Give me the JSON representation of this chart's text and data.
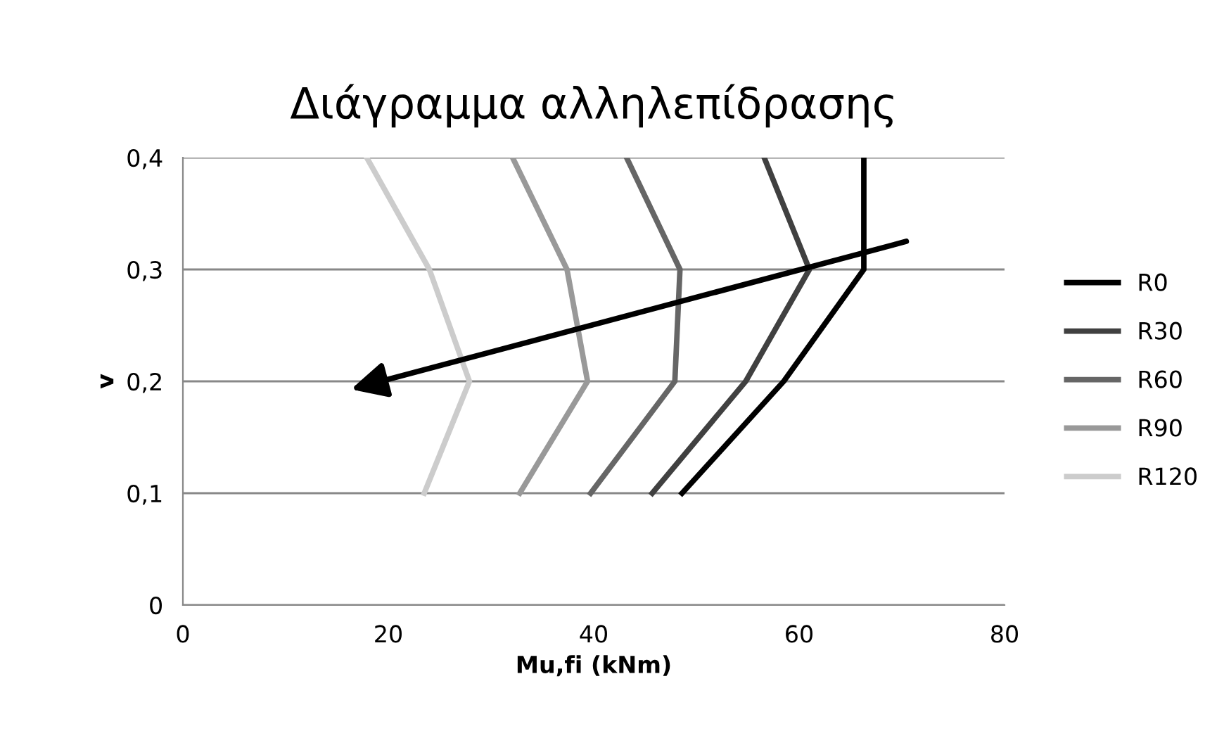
{
  "chart_data": {
    "type": "line",
    "title": "Διάγραμμα αλληλεπίδρασης",
    "xlabel": "Mu,fi (kNm)",
    "ylabel": "v",
    "xlim": [
      0,
      80
    ],
    "xticks": [
      0,
      20,
      40,
      60,
      80
    ],
    "ylim": [
      0,
      0.4
    ],
    "yticks": [
      {
        "value": 0,
        "label": "0"
      },
      {
        "value": 0.1,
        "label": "0,1"
      },
      {
        "value": 0.2,
        "label": "0,2"
      },
      {
        "value": 0.3,
        "label": "0,3"
      },
      {
        "value": 0.4,
        "label": "0,4"
      }
    ],
    "grid": "y",
    "legend": "right",
    "marker": "none",
    "line_style": "solid",
    "series": [
      {
        "name": "R0",
        "color": "#000000",
        "x": [
          48.6,
          58.5,
          66.3,
          66.3
        ],
        "values": [
          0.1,
          0.2,
          0.3,
          0.4
        ]
      },
      {
        "name": "R30",
        "color": "#404040",
        "x": [
          45.7,
          54.8,
          61.0,
          56.6
        ],
        "values": [
          0.1,
          0.2,
          0.3,
          0.4
        ]
      },
      {
        "name": "R60",
        "color": "#666666",
        "x": [
          39.7,
          47.9,
          48.4,
          43.2
        ],
        "values": [
          0.1,
          0.2,
          0.3,
          0.4
        ]
      },
      {
        "name": "R90",
        "color": "#999999",
        "x": [
          32.8,
          39.4,
          37.4,
          32.1
        ],
        "values": [
          0.1,
          0.2,
          0.3,
          0.4
        ]
      },
      {
        "name": "R120",
        "color": "#cccccc",
        "x": [
          23.5,
          27.9,
          24.0,
          17.9
        ],
        "values": [
          0.1,
          0.2,
          0.3,
          0.4
        ]
      }
    ]
  }
}
